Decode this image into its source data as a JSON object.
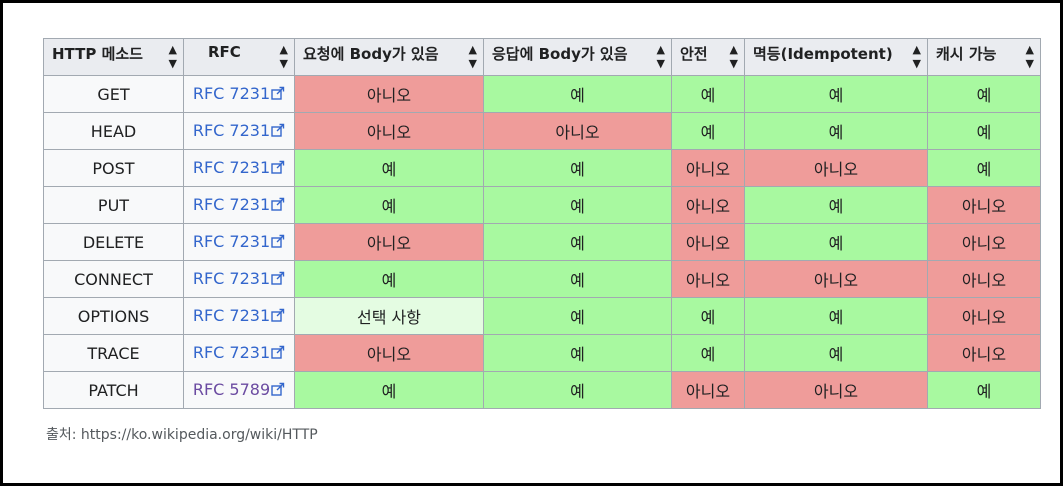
{
  "headers": [
    "HTTP 메소드",
    "RFC",
    "요청에 Body가 있음",
    "응답에 Body가 있음",
    "안전",
    "멱등(Idempotent)",
    "캐시 가능"
  ],
  "rows": [
    {
      "method": "GET",
      "rfc": "RFC 7231",
      "cells": [
        "아니오",
        "예",
        "예",
        "예",
        "예"
      ]
    },
    {
      "method": "HEAD",
      "rfc": "RFC 7231",
      "cells": [
        "아니오",
        "아니오",
        "예",
        "예",
        "예"
      ]
    },
    {
      "method": "POST",
      "rfc": "RFC 7231",
      "cells": [
        "예",
        "예",
        "아니오",
        "아니오",
        "예"
      ]
    },
    {
      "method": "PUT",
      "rfc": "RFC 7231",
      "cells": [
        "예",
        "예",
        "아니오",
        "예",
        "아니오"
      ]
    },
    {
      "method": "DELETE",
      "rfc": "RFC 7231",
      "cells": [
        "아니오",
        "예",
        "아니오",
        "예",
        "아니오"
      ]
    },
    {
      "method": "CONNECT",
      "rfc": "RFC 7231",
      "cells": [
        "예",
        "예",
        "아니오",
        "아니오",
        "아니오"
      ]
    },
    {
      "method": "OPTIONS",
      "rfc": "RFC 7231",
      "cells": [
        "선택 사항",
        "예",
        "예",
        "예",
        "아니오"
      ]
    },
    {
      "method": "TRACE",
      "rfc": "RFC 7231",
      "cells": [
        "아니오",
        "예",
        "예",
        "예",
        "아니오"
      ]
    },
    {
      "method": "PATCH",
      "rfc": "RFC 5789",
      "cells": [
        "예",
        "예",
        "아니오",
        "아니오",
        "예"
      ]
    }
  ],
  "source": "출처: https://ko.wikipedia.org/wiki/HTTP",
  "colors": {
    "yes": "#a8f9a0",
    "no": "#ef9c9a",
    "optional": "#e4fce2",
    "link": "#3366cc",
    "visited_link": "#6b4ba1"
  },
  "icons": {
    "sort": "sort-arrows-icon",
    "external_link": "external-link-icon"
  }
}
